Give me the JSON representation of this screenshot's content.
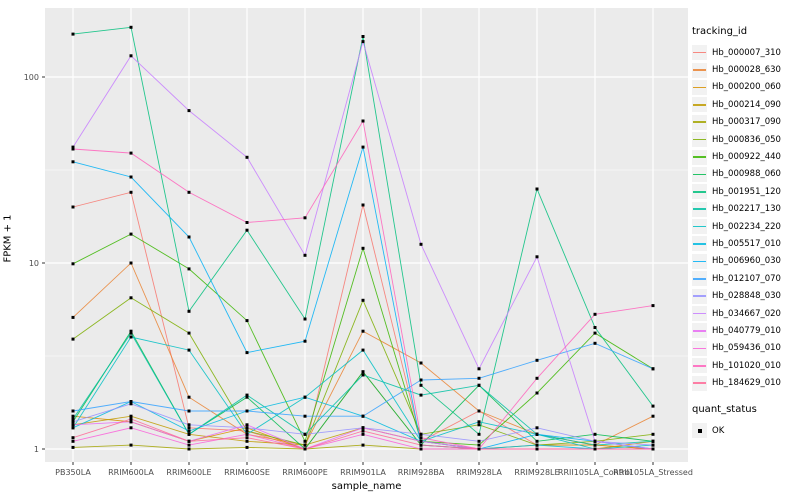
{
  "chart_data": {
    "type": "line",
    "title": "",
    "xlabel": "sample_name",
    "ylabel": "FPKM + 1",
    "y_scale": "log10",
    "y_ticks": [
      "1",
      "10",
      "100"
    ],
    "y_minor_gridlines": [
      3.162,
      31.62
    ],
    "ylim": [
      0.85,
      235
    ],
    "grid": "on",
    "panel_bg": "#EBEBEB",
    "grid_color": "#FFFFFF",
    "point_shape": "filled-square",
    "point_color": "#000000",
    "legend_position": "right",
    "categories": [
      "PB350LA",
      "RRIM600LA",
      "RRIM600LE",
      "RRIM600SE",
      "RRIM600PE",
      "RRIM901LA",
      "RRIM928BA",
      "RRIM928LA",
      "RRIM928LE",
      "RRII105LA_Control",
      "RRII105LA_Stressed"
    ],
    "legend": {
      "color_title": "tracking_id",
      "shape_title": "quant_status",
      "shape_items": [
        {
          "label": "OK"
        }
      ]
    },
    "series": [
      {
        "name": "Hb_000007_310",
        "color": "#F8766D",
        "values": [
          20,
          24,
          1.3,
          1.25,
          1.0,
          20.5,
          1.1,
          1.6,
          1.05,
          1.05,
          1.0
        ]
      },
      {
        "name": "Hb_000028_630",
        "color": "#EA8331",
        "values": [
          5.1,
          10,
          1.9,
          1.2,
          1.05,
          4.3,
          2.9,
          1.6,
          1.2,
          1.05,
          1.5
        ]
      },
      {
        "name": "Hb_000200_060",
        "color": "#D89000",
        "values": [
          1.5,
          1.4,
          1.1,
          1.3,
          1.0,
          2.6,
          1.05,
          1.0,
          1.0,
          1.0,
          1.1
        ]
      },
      {
        "name": "Hb_000214_090",
        "color": "#C09B00",
        "values": [
          1.35,
          1.5,
          1.2,
          1.1,
          1.05,
          1.3,
          1.1,
          1.0,
          1.05,
          1.05,
          1.0
        ]
      },
      {
        "name": "Hb_000317_090",
        "color": "#A3A500",
        "values": [
          1.02,
          1.05,
          1.0,
          1.02,
          1.0,
          1.05,
          1.0,
          1.0,
          1.0,
          1.0,
          1.0
        ]
      },
      {
        "name": "Hb_000836_050",
        "color": "#7CAE00",
        "values": [
          3.9,
          6.5,
          4.2,
          1.25,
          1.05,
          6.3,
          1.2,
          1.35,
          1.05,
          1.1,
          1.2
        ]
      },
      {
        "name": "Hb_000922_440",
        "color": "#39B600",
        "values": [
          9.9,
          14.3,
          9.3,
          4.9,
          1.1,
          12,
          1.1,
          1.05,
          2.0,
          4.2,
          2.7
        ]
      },
      {
        "name": "Hb_000988_060",
        "color": "#00BB4E",
        "values": [
          1.4,
          4.3,
          1.2,
          1.9,
          1.0,
          2.6,
          1.05,
          2.2,
          1.1,
          1.2,
          1.1
        ]
      },
      {
        "name": "Hb_001951_120",
        "color": "#00BF7D",
        "values": [
          170,
          185,
          5.5,
          15,
          5,
          165,
          2.2,
          1.2,
          25,
          4.5,
          1.7
        ]
      },
      {
        "name": "Hb_002217_130",
        "color": "#00C1A3",
        "values": [
          1.45,
          4.2,
          1.2,
          1.95,
          1.2,
          2.5,
          1.95,
          2.2,
          1.2,
          1.05,
          1.1
        ]
      },
      {
        "name": "Hb_002234_220",
        "color": "#00BFC4",
        "values": [
          1.3,
          4.0,
          3.4,
          1.2,
          1.9,
          3.4,
          1.1,
          1.4,
          1.2,
          1.0,
          1.05
        ]
      },
      {
        "name": "Hb_005517_010",
        "color": "#00BAE0",
        "values": [
          1.3,
          1.8,
          1.25,
          1.6,
          1.9,
          1.5,
          1.1,
          1.0,
          1.05,
          1.0,
          1.0
        ]
      },
      {
        "name": "Hb_006960_030",
        "color": "#00B0F6",
        "values": [
          35,
          29,
          13.8,
          3.3,
          3.8,
          42,
          1.05,
          1.0,
          1.2,
          1.1,
          1.0
        ]
      },
      {
        "name": "Hb_012107_070",
        "color": "#35A2FF",
        "values": [
          1.6,
          1.8,
          1.6,
          1.6,
          1.5,
          1.5,
          2.35,
          2.4,
          3.0,
          3.7,
          2.7
        ]
      },
      {
        "name": "Hb_028848_030",
        "color": "#9590FF",
        "values": [
          1.4,
          1.75,
          1.35,
          1.3,
          1.2,
          1.3,
          1.2,
          1.1,
          1.3,
          1.1,
          1.05
        ]
      },
      {
        "name": "Hb_034667_020",
        "color": "#C77CFF",
        "values": [
          42,
          130,
          66,
          37,
          11,
          155,
          12.6,
          2.7,
          10.8,
          1.1,
          1.0
        ]
      },
      {
        "name": "Hb_040779_010",
        "color": "#E76BF3",
        "values": [
          1.35,
          1.4,
          1.1,
          1.35,
          1.0,
          1.3,
          1.1,
          1.0,
          1.0,
          1.0,
          1.0
        ]
      },
      {
        "name": "Hb_059436_010",
        "color": "#FA62DB",
        "values": [
          1.1,
          1.3,
          1.05,
          1.2,
          1.0,
          1.2,
          1.0,
          1.0,
          1.0,
          1.0,
          1.0
        ]
      },
      {
        "name": "Hb_101020_010",
        "color": "#FF62BC",
        "values": [
          41,
          39,
          24,
          16.5,
          17.5,
          58,
          1.15,
          1.0,
          2.4,
          5.3,
          5.9
        ]
      },
      {
        "name": "Hb_184629_010",
        "color": "#FF6A98",
        "values": [
          1.15,
          1.45,
          1.1,
          1.15,
          1.0,
          1.25,
          1.05,
          1.0,
          1.0,
          1.0,
          1.0
        ]
      }
    ]
  }
}
